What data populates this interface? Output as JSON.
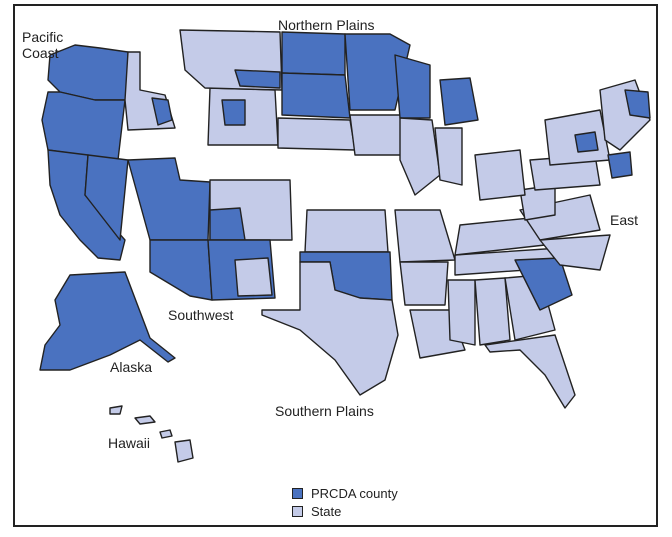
{
  "colors": {
    "prcda": "#4a72c0",
    "state": "#c4cbe8",
    "border": "#222222"
  },
  "regions": {
    "pacific": [
      "Pacific",
      "Coast"
    ],
    "northern_plains": "Northern Plains",
    "southwest": "Southwest",
    "southern_plains": "Southern Plains",
    "east": "East",
    "alaska": "Alaska",
    "hawaii": "Hawaii"
  },
  "legend": {
    "prcda": "PRCDA county",
    "state": "State"
  }
}
